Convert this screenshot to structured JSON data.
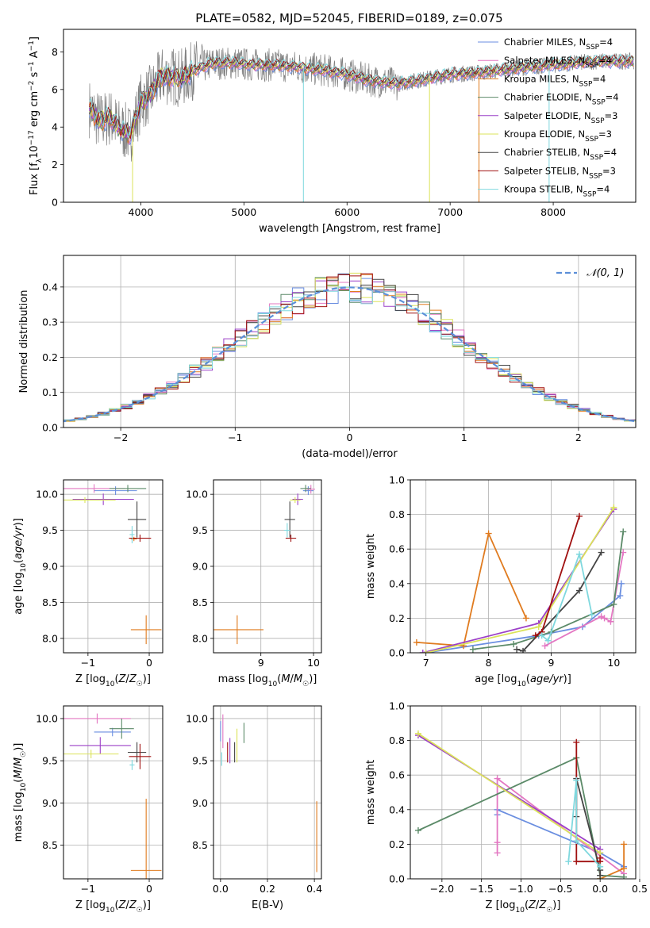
{
  "figure": {
    "title": "PLATE=0582, MJD=52045, FIBERID=0189, z=0.075",
    "series": [
      {
        "name": "Chabrier MILES, N_SSP=4",
        "color": "#6a8ee0"
      },
      {
        "name": "Salpeter MILES, N_SSP=4",
        "color": "#e377c2"
      },
      {
        "name": "Kroupa MILES, N_SSP=4",
        "color": "#e07b1f"
      },
      {
        "name": "Chabrier ELODIE, N_SSP=4",
        "color": "#5b8a68"
      },
      {
        "name": "Salpeter ELODIE, N_SSP=3",
        "color": "#9c40c8"
      },
      {
        "name": "Kroupa ELODIE, N_SSP=3",
        "color": "#dbe35a"
      },
      {
        "name": "Chabrier STELIB, N_SSP=4",
        "color": "#444444"
      },
      {
        "name": "Salpeter STELIB, N_SSP=3",
        "color": "#a01010"
      },
      {
        "name": "Kroupa STELIB, N_SSP=4",
        "color": "#7fd8de"
      }
    ],
    "data_color": "#7f7f7f",
    "gauss_color": "#5b8fd8"
  },
  "chart_data": [
    {
      "id": "spectrum",
      "type": "line",
      "xlabel": "wavelength [Angstrom, rest frame]",
      "ylabel": "Flux [f_λ10^-17 erg cm^-2 s^-1 A^-1]",
      "xlim": [
        3250,
        8800
      ],
      "ylim": [
        0,
        9.2
      ],
      "xticks": [
        "4000",
        "5000",
        "6000",
        "7000",
        "8000"
      ],
      "yticks": [
        "0",
        "2",
        "4",
        "6",
        "8"
      ],
      "grid": false,
      "legend": "right",
      "continuum": {
        "x": [
          3500,
          3600,
          3700,
          3800,
          3900,
          4000,
          4100,
          4200,
          4300,
          4400,
          4500,
          4700,
          4900,
          5100,
          5300,
          5500,
          5800,
          6000,
          6200,
          6500,
          6800,
          7000,
          7300,
          7600,
          8000,
          8400,
          8800
        ],
        "y": [
          5.0,
          4.3,
          4.5,
          3.9,
          3.6,
          5.3,
          5.8,
          6.7,
          6.7,
          6.6,
          7.0,
          7.4,
          7.4,
          7.3,
          7.3,
          7.2,
          7.0,
          6.8,
          6.5,
          6.3,
          6.6,
          6.8,
          6.9,
          7.1,
          7.3,
          7.5,
          7.5
        ]
      }
    },
    {
      "id": "residuals",
      "type": "histogram",
      "xlabel": "(data-model)/error",
      "ylabel": "Normed distribution",
      "xlim": [
        -2.5,
        2.5
      ],
      "ylim": [
        0,
        0.49
      ],
      "xticks": [
        "−2",
        "−1",
        "0",
        "1",
        "2"
      ],
      "yticks": [
        "0.0",
        "0.1",
        "0.2",
        "0.3",
        "0.4"
      ],
      "grid": true,
      "legend_label": "𝒩(0, 1)",
      "legend": "top-right",
      "bin_width": 0.1
    },
    {
      "id": "age-vs-Z",
      "type": "scatter",
      "xlabel": "Z [log10(Z/Z☉)]",
      "ylabel": "age [log10(age/yr)]",
      "xlim": [
        -1.4,
        0.22
      ],
      "ylim": [
        7.8,
        10.2
      ],
      "xticks": [
        "−1",
        "0"
      ],
      "yticks": [
        "8.0",
        "8.5",
        "9.0",
        "9.5",
        "10.0"
      ],
      "grid": true,
      "points": [
        {
          "s": 0,
          "x": -0.55,
          "y": 10.05,
          "dx": 0.35,
          "dy": 0.06
        },
        {
          "s": 1,
          "x": -0.9,
          "y": 10.08,
          "dx": 0.5,
          "dy": 0.06
        },
        {
          "s": 2,
          "x": -0.05,
          "y": 8.12,
          "dx": 0.25,
          "dy": 0.2
        },
        {
          "s": 2,
          "x": -0.25,
          "y": 9.38,
          "dx": 0.05,
          "dy": 0.03
        },
        {
          "s": 3,
          "x": -0.35,
          "y": 10.08,
          "dx": 0.3,
          "dy": 0.05
        },
        {
          "s": 4,
          "x": -0.75,
          "y": 9.93,
          "dx": 0.5,
          "dy": 0.08
        },
        {
          "s": 5,
          "x": -1.05,
          "y": 9.92,
          "dx": 0.5,
          "dy": 0.04
        },
        {
          "s": 6,
          "x": -0.2,
          "y": 9.65,
          "dx": 0.15,
          "dy": 0.25
        },
        {
          "s": 7,
          "x": -0.15,
          "y": 9.39,
          "dx": 0.18,
          "dy": 0.05
        },
        {
          "s": 8,
          "x": -0.28,
          "y": 9.44,
          "dx": 0.04,
          "dy": 0.12
        }
      ]
    },
    {
      "id": "age-vs-mass",
      "type": "scatter",
      "xlabel": "mass [log10(M/M☉)]",
      "ylabel": "",
      "xlim": [
        8.1,
        10.15
      ],
      "ylim": [
        7.8,
        10.2
      ],
      "xticks": [
        "9",
        "10"
      ],
      "yticks": [
        "8.0",
        "8.5",
        "9.0",
        "9.5",
        "10.0"
      ],
      "grid": true,
      "points": [
        {
          "s": 0,
          "x": 9.9,
          "y": 10.05,
          "dx": 0.1,
          "dy": 0.06
        },
        {
          "s": 1,
          "x": 9.95,
          "y": 10.07,
          "dx": 0.08,
          "dy": 0.06
        },
        {
          "s": 2,
          "x": 8.55,
          "y": 8.12,
          "dx": 0.5,
          "dy": 0.2
        },
        {
          "s": 3,
          "x": 9.85,
          "y": 10.08,
          "dx": 0.1,
          "dy": 0.05
        },
        {
          "s": 4,
          "x": 9.7,
          "y": 9.93,
          "dx": 0.1,
          "dy": 0.08
        },
        {
          "s": 5,
          "x": 9.65,
          "y": 9.92,
          "dx": 0.1,
          "dy": 0.04
        },
        {
          "s": 6,
          "x": 9.55,
          "y": 9.65,
          "dx": 0.1,
          "dy": 0.25
        },
        {
          "s": 7,
          "x": 9.57,
          "y": 9.39,
          "dx": 0.1,
          "dy": 0.05
        },
        {
          "s": 8,
          "x": 9.5,
          "y": 9.5,
          "dx": 0.06,
          "dy": 0.1
        }
      ]
    },
    {
      "id": "mass-weight-vs-age",
      "type": "line",
      "xlabel": "age  [log10(age/yr)]",
      "ylabel": "mass weight",
      "xlim": [
        6.75,
        10.35
      ],
      "ylim": [
        0,
        1.0
      ],
      "xticks": [
        "7",
        "8",
        "9",
        "10"
      ],
      "yticks": [
        "0.0",
        "0.2",
        "0.4",
        "0.6",
        "0.8",
        "1.0"
      ],
      "grid": true,
      "series": [
        {
          "s": 0,
          "x": [
            7.0,
            8.8,
            9.5,
            10.1,
            10.12
          ],
          "y": [
            0.0,
            0.1,
            0.15,
            0.33,
            0.4
          ]
        },
        {
          "s": 1,
          "x": [
            8.9,
            9.8,
            9.85,
            9.95,
            10.15
          ],
          "y": [
            0.04,
            0.21,
            0.2,
            0.18,
            0.58
          ]
        },
        {
          "s": 2,
          "x": [
            6.85,
            7.6,
            8.0,
            8.6
          ],
          "y": [
            0.06,
            0.04,
            0.69,
            0.2
          ]
        },
        {
          "s": 3,
          "x": [
            7.75,
            8.4,
            9.0,
            10.0,
            10.15
          ],
          "y": [
            0.02,
            0.05,
            0.12,
            0.28,
            0.7
          ]
        },
        {
          "s": 4,
          "x": [
            6.95,
            8.8,
            10.0
          ],
          "y": [
            0.0,
            0.17,
            0.83
          ]
        },
        {
          "s": 5,
          "x": [
            7.0,
            8.8,
            10.0
          ],
          "y": [
            0.0,
            0.15,
            0.84
          ]
        },
        {
          "s": 6,
          "x": [
            8.45,
            8.55,
            9.45,
            9.8
          ],
          "y": [
            0.02,
            0.01,
            0.36,
            0.58
          ]
        },
        {
          "s": 7,
          "x": [
            8.75,
            8.85,
            9.45
          ],
          "y": [
            0.1,
            0.12,
            0.79
          ]
        },
        {
          "s": 8,
          "x": [
            8.85,
            8.95,
            9.45,
            9.65
          ],
          "y": [
            0.1,
            0.07,
            0.57,
            0.22
          ]
        }
      ]
    },
    {
      "id": "mass-vs-Z",
      "type": "scatter",
      "xlabel": "Z [log10(Z/Z☉)]",
      "ylabel": "mass [log10(M/M☉)]",
      "xlim": [
        -1.4,
        0.22
      ],
      "ylim": [
        8.1,
        10.15
      ],
      "xticks": [
        "−1",
        "0"
      ],
      "yticks": [
        "8.5",
        "9.0",
        "9.5",
        "10.0"
      ],
      "grid": true,
      "points": [
        {
          "s": 0,
          "x": -0.6,
          "y": 9.84,
          "dx": 0.3,
          "dy": 0.05
        },
        {
          "s": 1,
          "x": -0.85,
          "y": 10.0,
          "dx": 0.55,
          "dy": 0.06
        },
        {
          "s": 2,
          "x": -0.05,
          "y": 8.2,
          "dx": 0.25,
          "dy": 0.85
        },
        {
          "s": 3,
          "x": -0.45,
          "y": 9.88,
          "dx": 0.2,
          "dy": 0.12
        },
        {
          "s": 4,
          "x": -0.8,
          "y": 9.68,
          "dx": 0.5,
          "dy": 0.1
        },
        {
          "s": 5,
          "x": -0.95,
          "y": 9.58,
          "dx": 0.45,
          "dy": 0.05
        },
        {
          "s": 6,
          "x": -0.2,
          "y": 9.6,
          "dx": 0.15,
          "dy": 0.12
        },
        {
          "s": 7,
          "x": -0.15,
          "y": 9.55,
          "dx": 0.18,
          "dy": 0.15
        },
        {
          "s": 8,
          "x": -0.28,
          "y": 9.45,
          "dx": 0.04,
          "dy": 0.06
        }
      ]
    },
    {
      "id": "mass-vs-EBV",
      "type": "scatter",
      "xlabel": "E(B-V)",
      "ylabel": "",
      "xlim": [
        -0.03,
        0.43
      ],
      "ylim": [
        8.1,
        10.15
      ],
      "xticks": [
        "0.0",
        "0.2",
        "0.4"
      ],
      "yticks": [
        "8.5",
        "9.0",
        "9.5",
        "10.0"
      ],
      "grid": true,
      "points": [
        {
          "s": 0,
          "x": 0.0,
          "y": 9.85,
          "dx": 0.0,
          "dy": 0.12
        },
        {
          "s": 1,
          "x": 0.01,
          "y": 9.85,
          "dx": 0.0,
          "dy": 0.2
        },
        {
          "s": 2,
          "x": 0.41,
          "y": 8.6,
          "dx": 0.0,
          "dy": 0.42
        },
        {
          "s": 3,
          "x": 0.1,
          "y": 9.83,
          "dx": 0.0,
          "dy": 0.12
        },
        {
          "s": 4,
          "x": 0.04,
          "y": 9.62,
          "dx": 0.0,
          "dy": 0.15
        },
        {
          "s": 5,
          "x": 0.07,
          "y": 9.68,
          "dx": 0.0,
          "dy": 0.2
        },
        {
          "s": 6,
          "x": 0.06,
          "y": 9.6,
          "dx": 0.0,
          "dy": 0.12
        },
        {
          "s": 7,
          "x": 0.03,
          "y": 9.6,
          "dx": 0.0,
          "dy": 0.12
        },
        {
          "s": 8,
          "x": 0.005,
          "y": 9.52,
          "dx": 0.0,
          "dy": 0.08
        }
      ]
    },
    {
      "id": "mass-weight-vs-Z",
      "type": "line",
      "xlabel": "Z [log10(Z/Z☉)]",
      "ylabel": "mass weight",
      "xlim": [
        -2.4,
        0.45
      ],
      "ylim": [
        0,
        1.0
      ],
      "xticks": [
        "−2.0",
        "−1.5",
        "−1.0",
        "−0.5",
        "0.0",
        "0.5"
      ],
      "yticks": [
        "0.0",
        "0.2",
        "0.4",
        "0.6",
        "0.8",
        "1.0"
      ],
      "grid": true,
      "series": [
        {
          "s": 0,
          "x": [
            -1.3,
            -1.3,
            0.0,
            0.3
          ],
          "y": [
            0.37,
            0.4,
            0.15,
            0.07
          ]
        },
        {
          "s": 1,
          "x": [
            -1.3,
            -1.3,
            -1.3,
            0.3
          ],
          "y": [
            0.15,
            0.21,
            0.58,
            0.03
          ]
        },
        {
          "s": 2,
          "x": [
            0.0,
            0.3,
            0.3
          ],
          "y": [
            0.0,
            0.06,
            0.2
          ]
        },
        {
          "s": 3,
          "x": [
            -2.3,
            -0.3,
            0.0,
            0.3
          ],
          "y": [
            0.28,
            0.7,
            0.02,
            0.01
          ]
        },
        {
          "s": 4,
          "x": [
            -2.3,
            0.0,
            0.0
          ],
          "y": [
            0.83,
            0.17,
            0.0
          ]
        },
        {
          "s": 5,
          "x": [
            -2.3,
            0.0,
            0.0
          ],
          "y": [
            0.84,
            0.15,
            0.0
          ]
        },
        {
          "s": 6,
          "x": [
            -0.3,
            -0.3,
            0.0,
            0.0
          ],
          "y": [
            0.36,
            0.58,
            0.05,
            0.02
          ]
        },
        {
          "s": 7,
          "x": [
            -0.3,
            -0.3,
            0.0,
            0.0
          ],
          "y": [
            0.79,
            0.1,
            0.1,
            0.12
          ]
        },
        {
          "s": 8,
          "x": [
            -0.4,
            -0.3,
            -0.3,
            0.0
          ],
          "y": [
            0.1,
            0.57,
            0.22,
            0.07
          ]
        }
      ]
    }
  ]
}
